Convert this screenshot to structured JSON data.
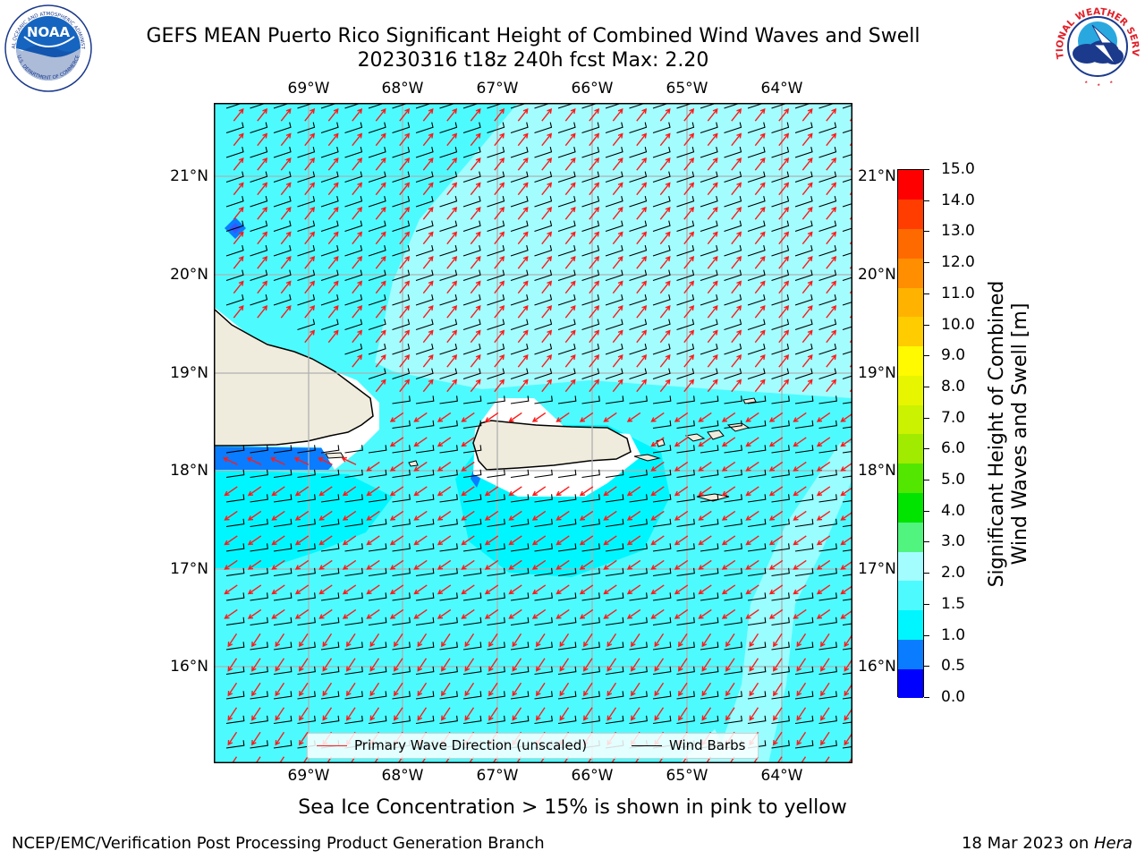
{
  "header": {
    "title_line1": "GEFS MEAN Puerto Rico Significant Height of Combined Wind Waves and Swell",
    "title_line2": "20230316 t18z 240h fcst   Max: 2.20"
  },
  "logos": {
    "left": {
      "text": "NOAA",
      "ring_text": "NATIONAL OCEANIC AND ATMOSPHERIC ADMINISTRATION",
      "ring_text_bottom": "U.S. DEPARTMENT OF COMMERCE"
    },
    "right": {
      "ring_text": "NATIONAL WEATHER SERVICE"
    }
  },
  "map": {
    "lon_labels": [
      "69°W",
      "68°W",
      "67°W",
      "66°W",
      "65°W",
      "64°W"
    ],
    "lat_labels": [
      "21°N",
      "20°N",
      "19°N",
      "18°N",
      "17°N",
      "16°N"
    ],
    "legend": {
      "wave_label": "Primary Wave Direction (unscaled)",
      "wind_label": "Wind Barbs",
      "wave_color": "#ff1a1a",
      "wind_color": "#000000"
    },
    "colors": {
      "ocean_main": "#4dfbff",
      "ocean_light": "#a3fdff",
      "ocean_dark": "#00f6ff",
      "ocean_deep": "#0a7cff",
      "land": "#efecdd"
    }
  },
  "colorbar": {
    "ticks": [
      "15.0",
      "14.0",
      "13.0",
      "12.0",
      "11.0",
      "10.0",
      "9.0",
      "8.0",
      "7.0",
      "6.0",
      "5.0",
      "4.0",
      "3.0",
      "2.0",
      "1.5",
      "1.0",
      "0.5",
      "0.0"
    ],
    "colors": [
      "#0000ff",
      "#0a7cff",
      "#00f6ff",
      "#4dfbff",
      "#a3fdff",
      "#50f47e",
      "#00e400",
      "#52e600",
      "#a0eb00",
      "#cbf200",
      "#e8f500",
      "#fffa00",
      "#ffcc00",
      "#ffb300",
      "#ff8e00",
      "#ff6a00",
      "#ff3d00",
      "#ff0000"
    ],
    "label_line1": "Significant Height of Combined",
    "label_line2": "Wind Waves and Swell [m]"
  },
  "note": "Sea Ice Concentration > 15% is shown in pink to yellow",
  "footer": {
    "left": "NCEP/EMC/Verification Post Processing Product Generation Branch",
    "right_date": "18 Mar 2023 on ",
    "right_host": "Hera"
  }
}
